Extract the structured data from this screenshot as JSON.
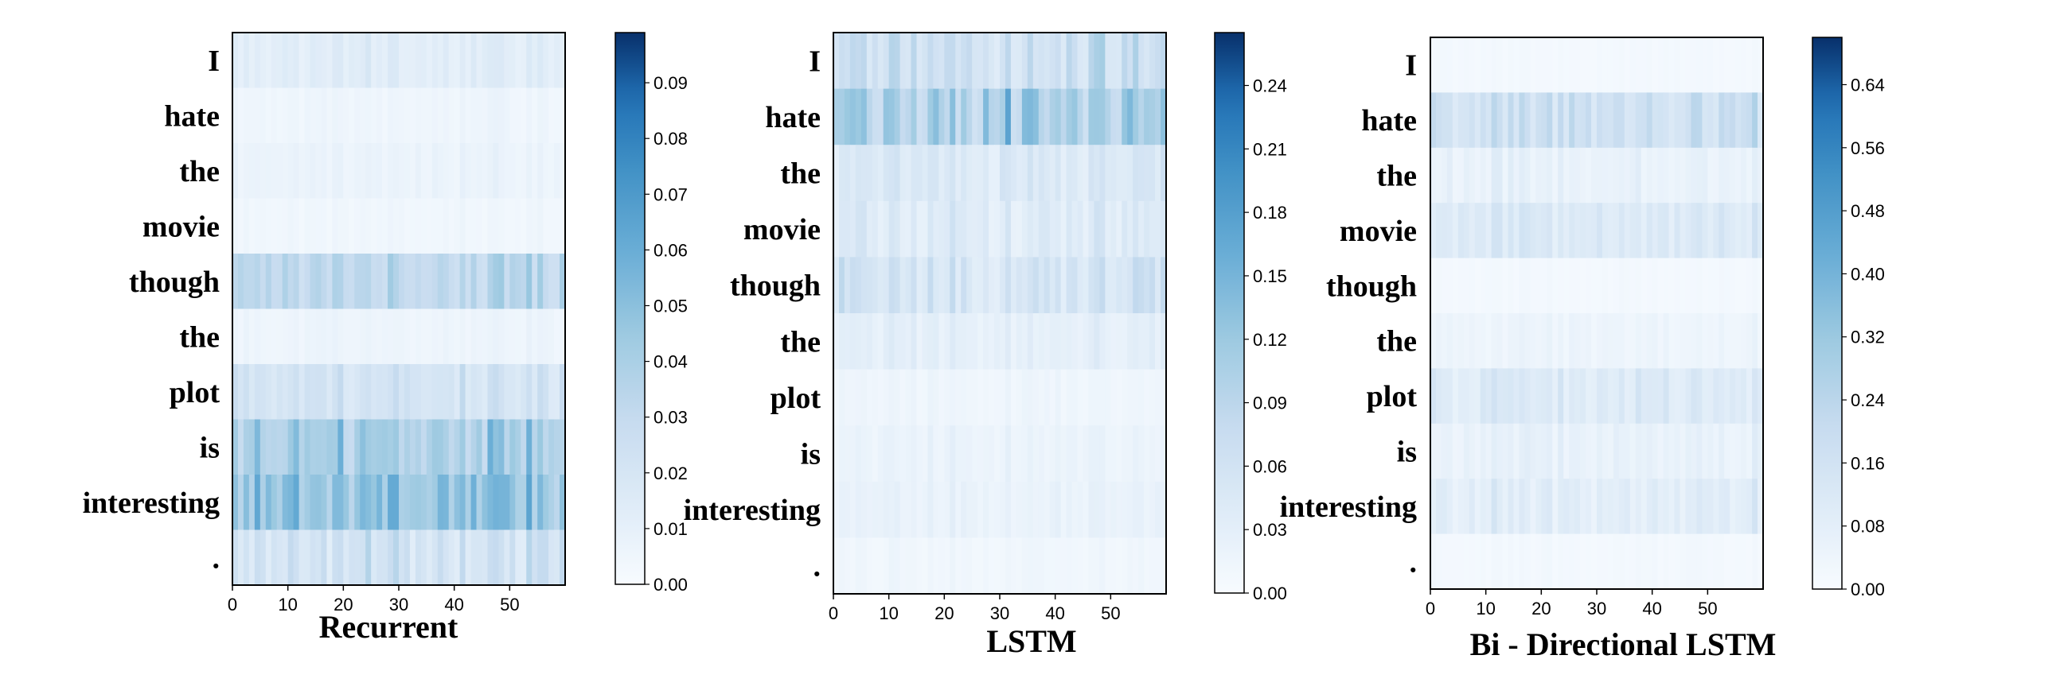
{
  "chart_data": [
    {
      "type": "heatmap",
      "xlabel": "Recurrent",
      "rows": [
        "I",
        "hate",
        "the",
        "movie",
        "though",
        "the",
        "plot",
        "is",
        "interesting",
        "."
      ],
      "x_ticks": [
        0,
        10,
        20,
        30,
        40,
        50
      ],
      "x_range": [
        0,
        59
      ],
      "colorbar_ticks": [
        "0.00",
        "0.01",
        "0.02",
        "0.03",
        "0.04",
        "0.05",
        "0.06",
        "0.07",
        "0.08",
        "0.09"
      ],
      "colorbar_range": [
        0,
        0.099
      ],
      "row_levels": [
        0.015,
        0.006,
        0.008,
        0.005,
        0.04,
        0.007,
        0.025,
        0.045,
        0.055,
        0.02
      ],
      "row_variation": [
        0.012,
        0.005,
        0.007,
        0.004,
        0.025,
        0.005,
        0.02,
        0.035,
        0.04,
        0.03
      ],
      "colormap": "Blues"
    },
    {
      "type": "heatmap",
      "xlabel": "LSTM",
      "rows": [
        "I",
        "hate",
        "the",
        "movie",
        "though",
        "the",
        "plot",
        "is",
        "interesting",
        "."
      ],
      "x_ticks": [
        0,
        10,
        20,
        30,
        40,
        50
      ],
      "x_range": [
        0,
        59
      ],
      "colorbar_ticks": [
        "0.00",
        "0.03",
        "0.06",
        "0.09",
        "0.12",
        "0.15",
        "0.18",
        "0.21",
        "0.24"
      ],
      "colorbar_range": [
        0,
        0.265
      ],
      "row_levels": [
        0.06,
        0.1,
        0.045,
        0.035,
        0.05,
        0.03,
        0.015,
        0.02,
        0.025,
        0.012
      ],
      "row_variation": [
        0.09,
        0.12,
        0.05,
        0.05,
        0.07,
        0.03,
        0.015,
        0.02,
        0.02,
        0.012
      ],
      "colormap": "Blues"
    },
    {
      "type": "heatmap",
      "xlabel": "Bi - Directional LSTM",
      "rows": [
        "I",
        "hate",
        "the",
        "movie",
        "though",
        "the",
        "plot",
        "is",
        "interesting",
        "."
      ],
      "x_ticks": [
        0,
        10,
        20,
        30,
        40,
        50
      ],
      "x_range": [
        0,
        59
      ],
      "colorbar_ticks": [
        "0.00",
        "0.08",
        "0.16",
        "0.24",
        "0.32",
        "0.40",
        "0.48",
        "0.56",
        "0.64"
      ],
      "colorbar_range": [
        0,
        0.7
      ],
      "row_levels": [
        0.02,
        0.18,
        0.06,
        0.12,
        0.02,
        0.04,
        0.1,
        0.06,
        0.08,
        0.02
      ],
      "row_variation": [
        0.015,
        0.2,
        0.08,
        0.12,
        0.015,
        0.05,
        0.15,
        0.08,
        0.12,
        0.02
      ],
      "colormap": "Blues"
    }
  ]
}
